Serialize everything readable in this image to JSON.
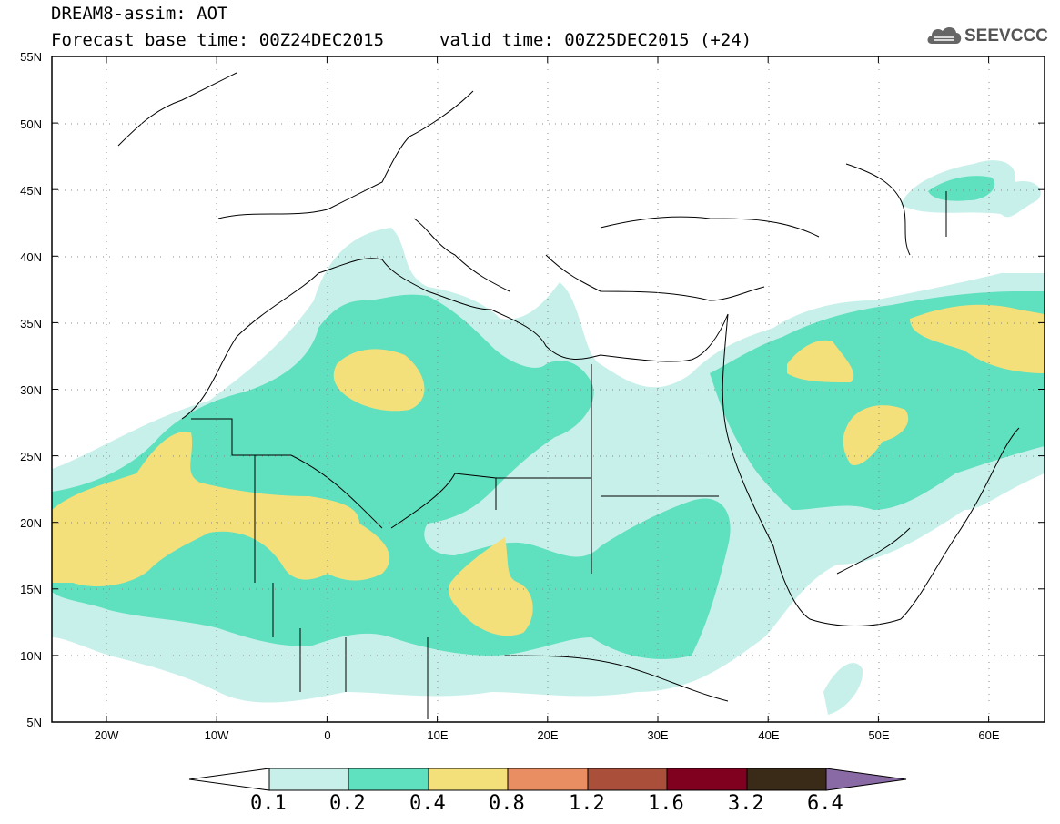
{
  "header": {
    "line1": "DREAM8-assim: AOT",
    "line2_base": "Forecast base time: 00Z24DEC2015",
    "line2_valid": "valid time: 00Z25DEC2015 (+24)",
    "logo_text": "SEEVCCC",
    "logo_icon": "cloud-logo-icon"
  },
  "map": {
    "lon_range": [
      -25,
      65
    ],
    "lat_range": [
      5,
      55
    ],
    "lat_labels": [
      "55N",
      "50N",
      "45N",
      "40N",
      "35N",
      "30N",
      "25N",
      "20N",
      "15N",
      "10N",
      "5N"
    ],
    "lon_labels": [
      "20W",
      "10W",
      "0",
      "10E",
      "20E",
      "30E",
      "40E",
      "50E",
      "60E"
    ],
    "grid": "dotted"
  },
  "colorbar": {
    "labels": [
      "0.1",
      "0.2",
      "0.4",
      "0.8",
      "1.2",
      "1.6",
      "3.2",
      "6.4"
    ],
    "colors": [
      "#c8f0ea",
      "#5fe0be",
      "#f3e07a",
      "#e98d63",
      "#a94f3a",
      "#800020",
      "#3a2a18"
    ],
    "end_left": "#ffffff",
    "end_right": "#8a6aa5"
  }
}
